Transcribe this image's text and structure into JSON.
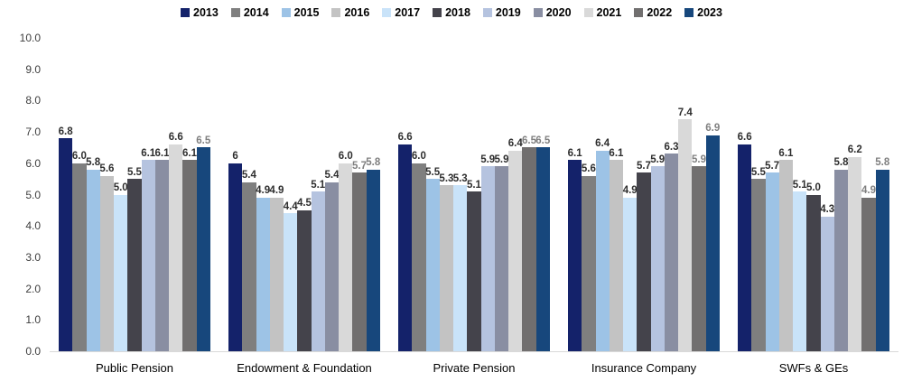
{
  "chart_data": {
    "type": "bar",
    "title": "",
    "xlabel": "",
    "ylabel": "",
    "ylim": [
      0,
      10
    ],
    "yticks": [
      "10.0",
      "9.0",
      "8.0",
      "7.0",
      "6.0",
      "5.0",
      "4.0",
      "3.0",
      "2.0",
      "1.0",
      "0.0"
    ],
    "grid": false,
    "legend_position": "top-center",
    "axis_line_color": "#d9d9d9",
    "categories": [
      "Public Pension",
      "Endowment & Foundation",
      "Private Pension",
      "Insurance Company",
      "SWFs & GEs"
    ],
    "series": [
      {
        "name": "2013",
        "color": "#14226A",
        "values": [
          6.8,
          6.0,
          6.6,
          6.1,
          6.6
        ],
        "labels": [
          "6.8",
          "6",
          "6.6",
          "6.1",
          "6.6"
        ],
        "muted": [
          false,
          false,
          false,
          false,
          false
        ]
      },
      {
        "name": "2014",
        "color": "#7F7F7F",
        "values": [
          6.0,
          5.4,
          6.0,
          5.6,
          5.5
        ],
        "labels": [
          "6.0",
          "5.4",
          "6.0",
          "5.6",
          "5.5"
        ],
        "muted": [
          false,
          false,
          false,
          false,
          false
        ]
      },
      {
        "name": "2015",
        "color": "#9DC3E6",
        "values": [
          5.8,
          4.9,
          5.5,
          6.4,
          5.7
        ],
        "labels": [
          "5.8",
          "4.9",
          "5.5",
          "6.4",
          "5.7"
        ],
        "muted": [
          false,
          false,
          false,
          false,
          false
        ]
      },
      {
        "name": "2016",
        "color": "#C3C3C3",
        "values": [
          5.6,
          4.9,
          5.3,
          6.1,
          6.1
        ],
        "labels": [
          "5.6",
          "4.9",
          "5.3",
          "6.1",
          "6.1"
        ],
        "muted": [
          false,
          false,
          false,
          false,
          false
        ]
      },
      {
        "name": "2017",
        "color": "#C9E3F9",
        "values": [
          5.0,
          4.4,
          5.3,
          4.9,
          5.1
        ],
        "labels": [
          "5.0",
          "4.4",
          "5.3",
          "4.9",
          "5.1"
        ],
        "muted": [
          false,
          false,
          false,
          false,
          false
        ]
      },
      {
        "name": "2018",
        "color": "#44434B",
        "values": [
          5.5,
          4.5,
          5.1,
          5.7,
          5.0
        ],
        "labels": [
          "5.5",
          "4.5",
          "5.1",
          "5.7",
          "5.0"
        ],
        "muted": [
          false,
          false,
          false,
          false,
          false
        ]
      },
      {
        "name": "2019",
        "color": "#B5C3DF",
        "values": [
          6.1,
          5.1,
          5.9,
          5.9,
          4.3
        ],
        "labels": [
          "6.1",
          "5.1",
          "5.9",
          "5.9",
          "4.3"
        ],
        "muted": [
          false,
          false,
          false,
          false,
          false
        ]
      },
      {
        "name": "2020",
        "color": "#898EA2",
        "values": [
          6.1,
          5.4,
          5.9,
          6.3,
          5.8
        ],
        "labels": [
          "6.1",
          "5.4",
          "5.9",
          "6.3",
          "5.8"
        ],
        "muted": [
          false,
          false,
          false,
          false,
          false
        ]
      },
      {
        "name": "2021",
        "color": "#D9D9D9",
        "values": [
          6.6,
          6.0,
          6.4,
          7.4,
          6.2
        ],
        "labels": [
          "6.6",
          "6.0",
          "6.4",
          "7.4",
          "6.2"
        ],
        "muted": [
          false,
          false,
          false,
          false,
          false
        ]
      },
      {
        "name": "2022",
        "color": "#716F6F",
        "values": [
          6.1,
          5.7,
          6.5,
          5.9,
          4.9
        ],
        "labels": [
          "6.1",
          "5.7",
          "6.5",
          "5.9",
          "4.9"
        ],
        "muted": [
          false,
          true,
          true,
          true,
          true
        ]
      },
      {
        "name": "2023",
        "color": "#17477C",
        "values": [
          6.5,
          5.8,
          6.5,
          6.9,
          5.8
        ],
        "labels": [
          "6.5",
          "5.8",
          "6.5",
          "6.9",
          "5.8"
        ],
        "muted": [
          true,
          true,
          true,
          true,
          true
        ]
      }
    ]
  }
}
